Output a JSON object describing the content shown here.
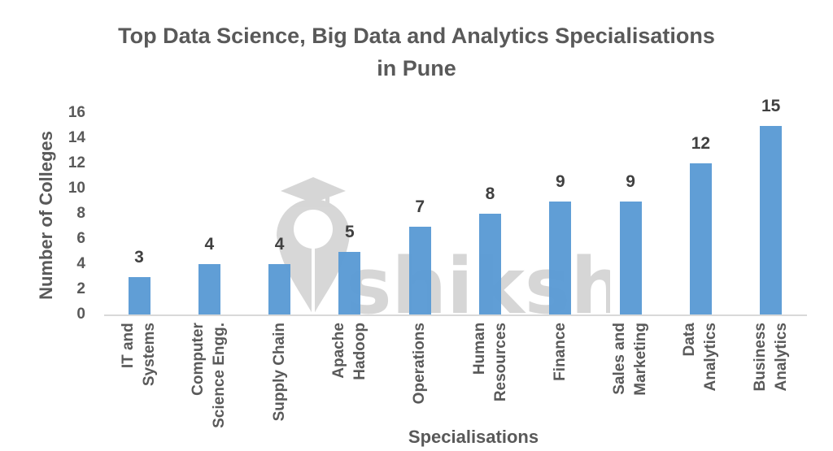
{
  "chart_data": {
    "type": "bar",
    "title": "Top Data Science, Big Data and Analytics Specialisations in Pune",
    "title_lines": [
      "Top Data Science, Big Data and Analytics Specialisations",
      "in Pune"
    ],
    "xlabel": "Specialisations",
    "ylabel": "Number of Colleges",
    "categories": [
      "IT and Systems",
      "Computer Science Engg.",
      "Supply Chain",
      "Apache Hadoop",
      "Operations",
      "Human Resources",
      "Finance",
      "Sales and Marketing",
      "Data Analytics",
      "Business Analytics"
    ],
    "category_lines": [
      [
        "IT and",
        "Systems"
      ],
      [
        "Computer",
        "Science Engg."
      ],
      [
        "Supply Chain"
      ],
      [
        "Apache",
        "Hadoop"
      ],
      [
        "Operations"
      ],
      [
        "Human",
        "Resources"
      ],
      [
        "Finance"
      ],
      [
        "Sales and",
        "Marketing"
      ],
      [
        "Data",
        "Analytics"
      ],
      [
        "Business",
        "Analytics"
      ]
    ],
    "values": [
      3,
      4,
      4,
      5,
      7,
      8,
      9,
      9,
      12,
      15
    ],
    "ylim": [
      0,
      16
    ],
    "yticks": [
      0,
      2,
      4,
      6,
      8,
      10,
      12,
      14,
      16
    ],
    "grid": false,
    "legend": null,
    "data_labels": true,
    "bar_color": "#5b9bd5",
    "watermark": "shiksha"
  }
}
